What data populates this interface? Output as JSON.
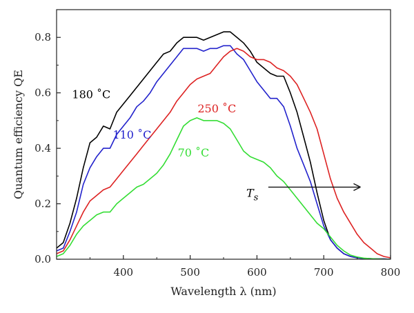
{
  "chart_data": {
    "type": "line",
    "title": "",
    "xlabel": "Wavelength λ (nm)",
    "ylabel": "Quantum efficiency QE",
    "xlim": [
      300,
      800
    ],
    "ylim": [
      0,
      0.9
    ],
    "xticks": [
      400,
      500,
      600,
      700,
      800
    ],
    "yticks": [
      0.0,
      0.2,
      0.4,
      0.6,
      0.8
    ],
    "xtick_labels": [
      "400",
      "500",
      "600",
      "700",
      "800"
    ],
    "ytick_labels": [
      "0.0",
      "0.2",
      "0.4",
      "0.6",
      "0.8"
    ],
    "grid": false,
    "legend": "none",
    "series": [
      {
        "name": "180 °C",
        "color": "#000000",
        "x": [
          300,
          310,
          320,
          330,
          340,
          350,
          360,
          370,
          380,
          390,
          400,
          410,
          420,
          430,
          440,
          450,
          460,
          470,
          480,
          490,
          500,
          510,
          520,
          530,
          540,
          550,
          560,
          570,
          580,
          590,
          600,
          610,
          620,
          630,
          640,
          650,
          660,
          670,
          680,
          690,
          700,
          710,
          720,
          730,
          740,
          750,
          760,
          770,
          780,
          790,
          800
        ],
        "y": [
          0.04,
          0.06,
          0.13,
          0.22,
          0.33,
          0.42,
          0.44,
          0.48,
          0.47,
          0.53,
          0.56,
          0.59,
          0.62,
          0.65,
          0.68,
          0.71,
          0.74,
          0.75,
          0.78,
          0.8,
          0.8,
          0.8,
          0.79,
          0.8,
          0.81,
          0.82,
          0.82,
          0.8,
          0.78,
          0.75,
          0.71,
          0.69,
          0.67,
          0.66,
          0.66,
          0.6,
          0.53,
          0.44,
          0.35,
          0.24,
          0.14,
          0.07,
          0.04,
          0.02,
          0.01,
          0.005,
          0.003,
          0.002,
          0.001,
          0.001,
          0.0
        ]
      },
      {
        "name": "110 °C",
        "color": "#2222cc",
        "x": [
          300,
          310,
          320,
          330,
          340,
          350,
          360,
          370,
          380,
          390,
          400,
          410,
          420,
          430,
          440,
          450,
          460,
          470,
          480,
          490,
          500,
          510,
          520,
          530,
          540,
          550,
          560,
          570,
          580,
          590,
          600,
          610,
          620,
          630,
          640,
          650,
          660,
          670,
          680,
          690,
          700,
          710,
          720,
          730,
          740,
          750,
          760,
          770,
          780,
          790,
          800
        ],
        "y": [
          0.03,
          0.04,
          0.1,
          0.17,
          0.27,
          0.33,
          0.37,
          0.4,
          0.4,
          0.45,
          0.48,
          0.51,
          0.55,
          0.57,
          0.6,
          0.64,
          0.67,
          0.7,
          0.73,
          0.76,
          0.76,
          0.76,
          0.75,
          0.76,
          0.76,
          0.77,
          0.77,
          0.74,
          0.72,
          0.68,
          0.64,
          0.61,
          0.58,
          0.58,
          0.55,
          0.48,
          0.4,
          0.34,
          0.28,
          0.2,
          0.12,
          0.07,
          0.04,
          0.02,
          0.01,
          0.005,
          0.003,
          0.002,
          0.001,
          0.001,
          0.0
        ]
      },
      {
        "name": "250 °C",
        "color": "#dd2222",
        "x": [
          300,
          310,
          320,
          330,
          340,
          350,
          360,
          370,
          380,
          390,
          400,
          410,
          420,
          430,
          440,
          450,
          460,
          470,
          480,
          490,
          500,
          510,
          520,
          530,
          540,
          550,
          560,
          570,
          580,
          590,
          600,
          610,
          620,
          630,
          640,
          650,
          660,
          670,
          680,
          690,
          700,
          710,
          720,
          730,
          740,
          750,
          760,
          770,
          780,
          790,
          800
        ],
        "y": [
          0.02,
          0.03,
          0.07,
          0.12,
          0.17,
          0.21,
          0.23,
          0.25,
          0.26,
          0.29,
          0.32,
          0.35,
          0.38,
          0.41,
          0.44,
          0.47,
          0.5,
          0.53,
          0.57,
          0.6,
          0.63,
          0.65,
          0.66,
          0.67,
          0.7,
          0.73,
          0.75,
          0.76,
          0.75,
          0.73,
          0.72,
          0.72,
          0.71,
          0.69,
          0.68,
          0.66,
          0.63,
          0.58,
          0.53,
          0.47,
          0.38,
          0.29,
          0.22,
          0.17,
          0.13,
          0.09,
          0.06,
          0.04,
          0.02,
          0.01,
          0.005
        ]
      },
      {
        "name": "70 °C",
        "color": "#33dd33",
        "x": [
          300,
          310,
          320,
          330,
          340,
          350,
          360,
          370,
          380,
          390,
          400,
          410,
          420,
          430,
          440,
          450,
          460,
          470,
          480,
          490,
          500,
          510,
          520,
          530,
          540,
          550,
          560,
          570,
          580,
          590,
          600,
          610,
          620,
          630,
          640,
          650,
          660,
          670,
          680,
          690,
          700,
          710,
          720,
          730,
          740,
          750,
          760,
          770,
          780,
          790,
          800
        ],
        "y": [
          0.01,
          0.02,
          0.05,
          0.09,
          0.12,
          0.14,
          0.16,
          0.17,
          0.17,
          0.2,
          0.22,
          0.24,
          0.26,
          0.27,
          0.29,
          0.31,
          0.34,
          0.38,
          0.43,
          0.48,
          0.5,
          0.51,
          0.5,
          0.5,
          0.5,
          0.49,
          0.47,
          0.43,
          0.39,
          0.37,
          0.36,
          0.35,
          0.33,
          0.3,
          0.28,
          0.25,
          0.22,
          0.19,
          0.16,
          0.13,
          0.11,
          0.08,
          0.05,
          0.03,
          0.015,
          0.008,
          0.004,
          0.002,
          0.001,
          0.0,
          0.0
        ]
      }
    ],
    "annotations": [
      {
        "text": "180 ˚C",
        "color": "#000000",
        "x": 352,
        "y": 0.595
      },
      {
        "text": "110 ˚C",
        "color": "#2222cc",
        "x": 413,
        "y": 0.45
      },
      {
        "text": "250 ˚C",
        "color": "#dd2222",
        "x": 540,
        "y": 0.545
      },
      {
        "text": "70 ˚C",
        "color": "#33dd33",
        "x": 505,
        "y": 0.385
      },
      {
        "text": "Ts",
        "color": "#000000",
        "x": 593,
        "y": 0.245,
        "arrow": {
          "x0": 617,
          "x1": 755,
          "y": 0.26
        }
      }
    ]
  }
}
